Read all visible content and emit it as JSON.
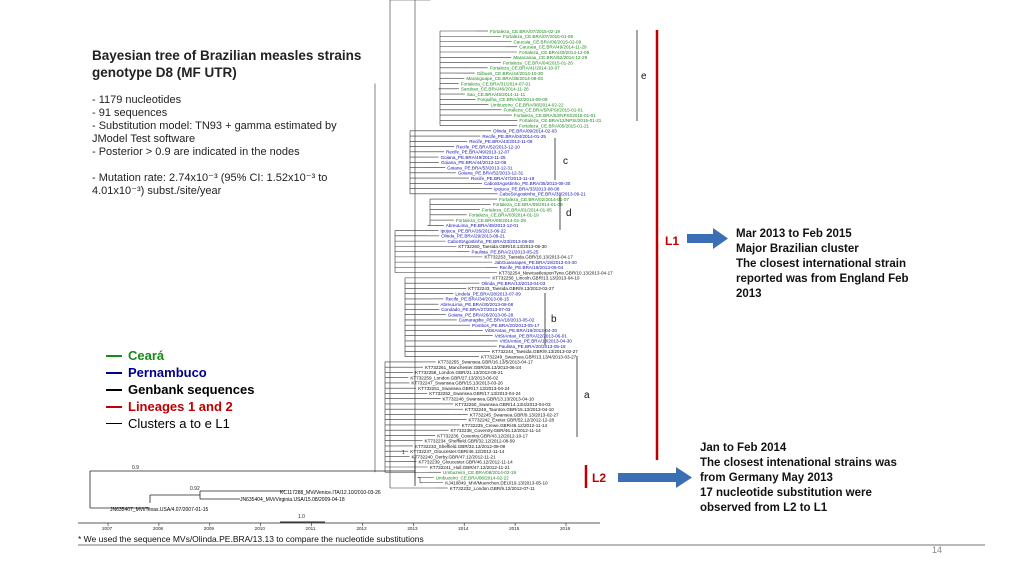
{
  "title": "Bayesian tree of Brazilian measles strains genotype D8 (MF UTR)",
  "info": {
    "line1": "- 1179 nucleotides",
    "line2": "- 91 sequences",
    "line3": "- Substitution model: TN93 + gamma estimated by JModel Test software",
    "line4": "- Posterior > 0.9 are indicated in the nodes",
    "line5": "- Mutation rate: 2.74x10⁻³ (95% CI: 1.52x10⁻³ to 4.01x10⁻³) subst./site/year"
  },
  "legend": [
    {
      "label": "Ceará",
      "color": "#1a8a1a"
    },
    {
      "label": "Pernambuco",
      "color": "#00008b"
    },
    {
      "label": "Genbank sequences",
      "color": "#000000"
    },
    {
      "label": "Lineages 1 and 2",
      "color": "#c00000"
    },
    {
      "label": "Clusters a to e L1",
      "color": "#000000"
    }
  ],
  "lineages": {
    "l1": "L1",
    "l2": "L2"
  },
  "clusters": [
    "e",
    "c",
    "d",
    "b",
    "a"
  ],
  "annotation_l1": {
    "line1": "Mar 2013 to Feb 2015",
    "line2": "Major Brazilian cluster",
    "line3": "The closest international strain",
    "line4": "reported was from England Feb",
    "line5": "2013"
  },
  "annotation_l2": {
    "line1": "Jan to Feb 2014",
    "line2": "The closest intenational strains was",
    "line3": "from Germany May 2013",
    "line4": "17 nucleotide substitution were",
    "line5": "observed from L2 to L1"
  },
  "axis_years": [
    "2007",
    "2008",
    "2009",
    "2010",
    "2011",
    "2012",
    "2013",
    "2014",
    "2015",
    "2016"
  ],
  "scale_label": "1.0",
  "footnote": "* We used the sequence MVs/Olinda.PE.BRA/13.13 to compare the nucleotide substitutions",
  "page_number": "14",
  "outgroup_labels": [
    "KC117288_MVi/Venice.ITA/12.10/2010-03-26",
    "JN635404_MVi/Virginia.USA/15.08/2009-04-18",
    "JN635407_MVi/Texas.USA/4.07/2007-01-15"
  ],
  "leaves": [
    {
      "t": "Fortaleza_CE.BRA/07/2015-02-19",
      "c": "g"
    },
    {
      "t": "Fortaleza_CE.BRA/07/2015-01-08",
      "c": "g"
    },
    {
      "t": "Caucaia_CE.BRA/06/2015-02-09",
      "c": "g"
    },
    {
      "t": "Caucaia_CE.BRA/49/2014-11-29",
      "c": "g"
    },
    {
      "t": "Fortaleza_CE.BRA/40/2014-12-09",
      "c": "g"
    },
    {
      "t": "Maracanau_CE.BRA/52/2014-12-29",
      "c": "g"
    },
    {
      "t": "Fortaleza_CE.BRA/04/2015-01-26",
      "c": "g"
    },
    {
      "t": "Fortaleza_CE.BRA/41/2014-10-07",
      "c": "g"
    },
    {
      "t": "Gilbues_CE.BRA/44/2014-10-30",
      "c": "g"
    },
    {
      "t": "Maranguape_CE.BRA/35/2014-09-03",
      "c": "g"
    },
    {
      "t": "Fortaleza_CE.BRA/31/2014-07-01",
      "c": "g"
    },
    {
      "t": "Sarubao_CE.BRA/46/2014-11-26",
      "c": "g"
    },
    {
      "t": "Sao_CE.BRA/45/2014-11-11",
      "c": "g"
    },
    {
      "t": "Forquilha_CE.BRA/52/2014-09-09",
      "c": "g"
    },
    {
      "t": "Umbuzeiro_CE.BRA/08/2014-02-22",
      "c": "g"
    },
    {
      "t": "Fortaleza_CE.BRA/5/NPSI/2015-01-01",
      "c": "g"
    },
    {
      "t": "Fortaleza_CE.BRA/53/NPSI/2015-01-01",
      "c": "g"
    },
    {
      "t": "Fortaleza_CE.BRA/12/NPSI/2015-01-21",
      "c": "g"
    },
    {
      "t": "Fortaleza_CE.BRA/05/2015-01-21",
      "c": "g"
    },
    {
      "t": "Olinda_PE.BRA/09/2014-02-03",
      "c": "b"
    },
    {
      "t": "Recife_PE.BRA/04/2014-01-25",
      "c": "b"
    },
    {
      "t": "Recife_PE.BRA/43/2013-11-09",
      "c": "b"
    },
    {
      "t": "Recife_PE.BRA/52/2013-12-10",
      "c": "b"
    },
    {
      "t": "Recife_PE.BRA/49/2013-12-07",
      "c": "b"
    },
    {
      "t": "Goiana_PE.BRA/49/2013-11-25",
      "c": "b"
    },
    {
      "t": "Goiana_PE.BRA/44/2013-12-06",
      "c": "b"
    },
    {
      "t": "Goiana_PE.BRA/53/2013-12-31",
      "c": "b"
    },
    {
      "t": "Goiana_PE.BRA/52/2013-12-31",
      "c": "b"
    },
    {
      "t": "Recife_PE.BRA/47/2013-11-19",
      "c": "b"
    },
    {
      "t": "CaboStAgostinho_PE.BRA/35/2013-08-30",
      "c": "b"
    },
    {
      "t": "Ipojuca_PE.BRA/33/2013-08-08",
      "c": "b"
    },
    {
      "t": "CaboStAgostinho_PE.BRA/38/2013-09-21",
      "c": "b"
    },
    {
      "t": "Fortaleza_CE.BRA/02/2014-01-07",
      "c": "g"
    },
    {
      "t": "Fortaleza_CE.BRA/09/2014-01-09",
      "c": "g"
    },
    {
      "t": "Fortaleza_CE.BRA/01/2014-01-05",
      "c": "g"
    },
    {
      "t": "Fortaleza_CE.BRA/03/2014-01-19",
      "c": "g"
    },
    {
      "t": "Fortaleza_CE.BRA/05/2014-01-28",
      "c": "g"
    },
    {
      "t": "AbreuLima_PE.BRA/49/2013-12-01",
      "c": "b"
    },
    {
      "t": "Ipojuca_PE.BRA/26/2013-06-22",
      "c": "b"
    },
    {
      "t": "Olinda_PE.BRA/29/2013-08-21",
      "c": "b"
    },
    {
      "t": "CaboStAgostinho_PE.BRA/23/2013-06-08",
      "c": "b"
    },
    {
      "t": "KT732260_Taesida.GBR/18.13/2013-05-30",
      "c": "k"
    },
    {
      "t": "Paulista_PE.BRA/21/2013-05-25",
      "c": "b"
    },
    {
      "t": "KT732253_Taesida.GBR/16.13/2013-04-17",
      "c": "k"
    },
    {
      "t": "JabGuararapes_PE.BRA/19/2013-04-30",
      "c": "b"
    },
    {
      "t": "Recife_PE.BRA/18/2013-05-04",
      "c": "b"
    },
    {
      "t": "KT732254_NewcastleuponTyne.GBR/10.13/2013-04-17",
      "c": "k"
    },
    {
      "t": "KT732256_Lincoln.GBR/13.13/2013-04-10",
      "c": "k"
    },
    {
      "t": "Olinda_PE.BRA/13/2013-04-03",
      "c": "b"
    },
    {
      "t": "KT732243_Taesida.GBR/9.13/2013-02-27",
      "c": "k"
    },
    {
      "t": "Lindela_PE.BRA/28/2013-07-09",
      "c": "b"
    },
    {
      "t": "Recife_PE.BRA/34/2013-08-15",
      "c": "b"
    },
    {
      "t": "AbreuLima_PE.BRA/30/2013-08-08",
      "c": "b"
    },
    {
      "t": "Condado_PE.BRA/27/2013-07-03",
      "c": "b"
    },
    {
      "t": "Goiana_PE.BRA/26/2013-06-28",
      "c": "b"
    },
    {
      "t": "Camaragibe_PE.BRA/18/2013-05-02",
      "c": "b"
    },
    {
      "t": "Pombos_PE.BRA/20/2013-05-17",
      "c": "b"
    },
    {
      "t": "VitStAntao_PE.BRA/19/2013-04-30",
      "c": "b"
    },
    {
      "t": "VitStAntao_PE.BRA/22/2013-06-01",
      "c": "b"
    },
    {
      "t": "VitStAntao_PE.BRA/18/2013-04-30",
      "c": "b"
    },
    {
      "t": "Paulista_PE.BRA/20/2013-05-18",
      "c": "b"
    },
    {
      "t": "KT732244_Taesida.GBR/9.13/2013-02-27",
      "c": "k"
    },
    {
      "t": "KT732249_Swansea.GBR/13.13/4/2013-03-27",
      "c": "k"
    },
    {
      "t": "KT732255_Swansea.GBR/16.13/5/2013-04-17",
      "c": "k"
    },
    {
      "t": "KT732261_Manchester.GBR/26.13/2013-06-24",
      "c": "k"
    },
    {
      "t": "KT732258_London.GBR/21.13/2013-05-21",
      "c": "k"
    },
    {
      "t": "KT732259_London.GBR/27.13/2013-06-02",
      "c": "k"
    },
    {
      "t": "KT732247_Swansea.GBR/15.13/2013-03-26",
      "c": "k"
    },
    {
      "t": "KT732251_Swansea.GBR/17.13/2013-04-24",
      "c": "k"
    },
    {
      "t": "KT732252_Swansea.GBR/17.13/2013-04-24",
      "c": "k"
    },
    {
      "t": "KT732248_Swansea.GBR/13.13/2013-04-10",
      "c": "k"
    },
    {
      "t": "KT732250_Swansea.GBR/14.13/4/2013-04-03",
      "c": "k"
    },
    {
      "t": "KT732246_Taunton.GBR/15.13/2013-04-10",
      "c": "k"
    },
    {
      "t": "KT732245_Swansea.GBR/9.13/2013-02-27",
      "c": "k"
    },
    {
      "t": "KT732242_Exeter.GBR/52.12/2012-12-28",
      "c": "k"
    },
    {
      "t": "KT732235_Crewe.GBR/46.12/2012-11-14",
      "c": "k"
    },
    {
      "t": "KT732238_Coventry.GBR/46.12/2012-11-14",
      "c": "k"
    },
    {
      "t": "KT732236_Coventry.GBR/43.12/2012-10-17",
      "c": "k"
    },
    {
      "t": "KT732234_Sheffield.GBR/32.12/2012-08-09",
      "c": "k"
    },
    {
      "t": "KT732233_Sheffield.GBR/32.12/2012-08-09",
      "c": "k"
    },
    {
      "t": "KT732237_Gloucester.GBR/46.12/2012-11-14",
      "c": "k"
    },
    {
      "t": "KT732240_Derby.GBR/47.12/2012-11-21",
      "c": "k"
    },
    {
      "t": "KT732239_Gloucester.GBR/46.12/2012-11-14",
      "c": "k"
    },
    {
      "t": "KT732241_Hull.GBR/47.12/2012-11-21",
      "c": "k"
    },
    {
      "t": "Umbuzeiro_CE.BRA/08/2014-02-19",
      "c": "g"
    },
    {
      "t": "Umbuzeiro_CE.BRA/08/2014-02-22",
      "c": "g"
    },
    {
      "t": "KJ410849_MVi/Muenchen.DEU/19.13/2013-05-10",
      "c": "k"
    },
    {
      "t": "KT732232_London.GBR/9.12/2012-07-11",
      "c": "k"
    }
  ]
}
